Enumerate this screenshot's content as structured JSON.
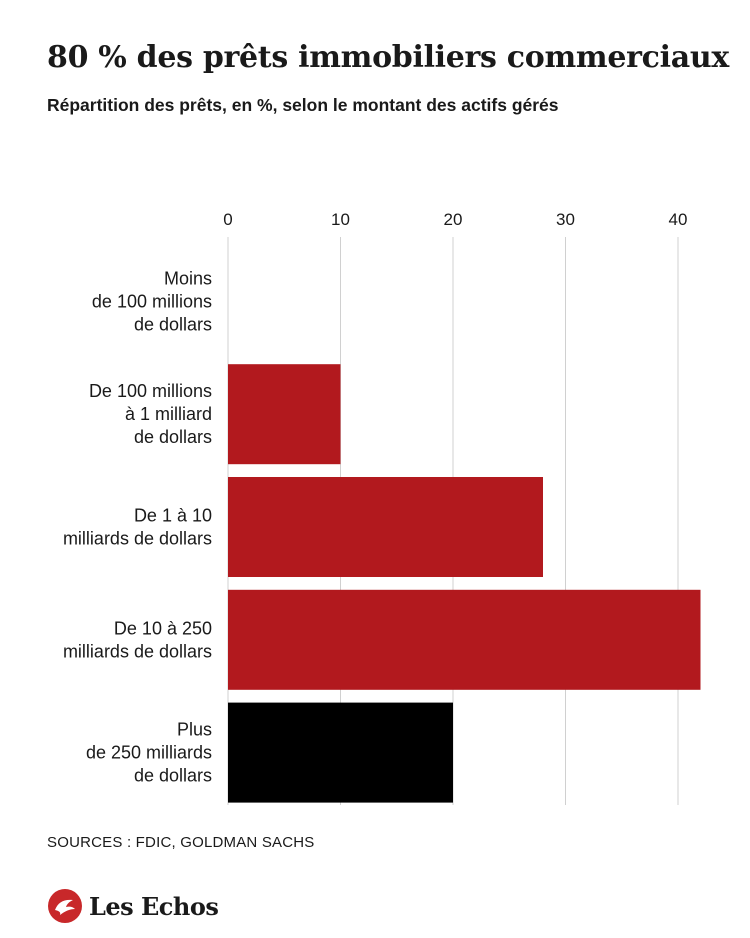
{
  "title": "80 % des prêts immobiliers commerciaux",
  "subtitle": "Répartition des prêts, en %, selon le montant des actifs gérés",
  "source": "SOURCES : FDIC, GOLDMAN SACHS",
  "brand": {
    "name": "Les Echos",
    "logo_icon": "les-echos-logo-icon",
    "color": "#c8282a"
  },
  "colors": {
    "bar_red": "#b2191e",
    "bar_black": "#000000",
    "grid": "#d0d0d0",
    "text": "#1a1a1a"
  },
  "chart_data": {
    "type": "bar",
    "orientation": "horizontal",
    "title": "80 % des prêts immobiliers commerciaux",
    "subtitle": "Répartition des prêts, en %, selon le montant des actifs gérés",
    "xlim": [
      0,
      42
    ],
    "xticks": [
      "0",
      "10",
      "20",
      "30",
      "40"
    ],
    "grid": true,
    "categories": [
      [
        "Moins",
        "de 100 millions",
        "de dollars"
      ],
      [
        "De 100 millions",
        "à 1 milliard",
        "de dollars"
      ],
      [
        "De 1 à 10",
        "milliards de dollars"
      ],
      [
        "De 10 à 250",
        "milliards de dollars"
      ],
      [
        "Plus",
        "de 250 milliards",
        "de dollars"
      ]
    ],
    "values": [
      0,
      10,
      28,
      42,
      20
    ],
    "bar_colors": [
      "#b2191e",
      "#b2191e",
      "#b2191e",
      "#b2191e",
      "#000000"
    ]
  }
}
